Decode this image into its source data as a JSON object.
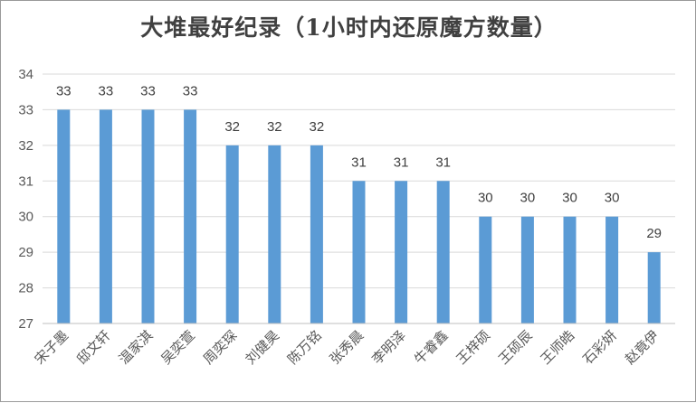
{
  "chart_data": {
    "type": "bar",
    "title": "大堆最好纪录（1小时内还原魔方数量）",
    "categories": [
      "宋子墨",
      "邸文轩",
      "温家淇",
      "吴奕萱",
      "周奕琛",
      "刘健昊",
      "陈万铭",
      "张秀晨",
      "李明泽",
      "牛睿鑫",
      "王梓硕",
      "王硕辰",
      "王师皓",
      "石彩妍",
      "赵竟伊"
    ],
    "values": [
      33,
      33,
      33,
      33,
      32,
      32,
      32,
      31,
      31,
      31,
      30,
      30,
      30,
      30,
      29
    ],
    "ylim": [
      27,
      34
    ],
    "yticks": [
      27,
      28,
      29,
      30,
      31,
      32,
      33,
      34
    ],
    "grid": true,
    "legend": "none",
    "bar_color": "#5b9bd5",
    "data_labels": true
  }
}
